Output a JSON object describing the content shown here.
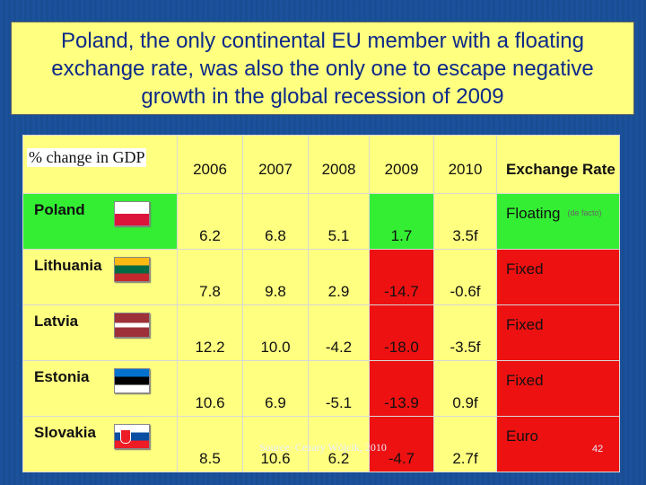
{
  "title": "Poland, the only continental EU member with a floating exchange rate, was also the only one to escape negative growth in the global recession of 2009",
  "table": {
    "caption": "% change in GDP",
    "years": [
      "2006",
      "2007",
      "2008",
      "2009",
      "2010"
    ],
    "exchange_header": "Exchange Rate",
    "rows": [
      {
        "country": "Poland",
        "flag": "poland-flag-icon",
        "values": [
          "6.2",
          "6.8",
          "5.1",
          "1.7",
          "3.5f"
        ],
        "exchange": "Floating",
        "note": "(de facto)"
      },
      {
        "country": "Lithuania",
        "flag": "lithuania-flag-icon",
        "values": [
          "7.8",
          "9.8",
          "2.9",
          "-14.7",
          "-0.6f"
        ],
        "exchange": "Fixed"
      },
      {
        "country": "Latvia",
        "flag": "latvia-flag-icon",
        "values": [
          "12.2",
          "10.0",
          "-4.2",
          "-18.0",
          "-3.5f"
        ],
        "exchange": "Fixed"
      },
      {
        "country": "Estonia",
        "flag": "estonia-flag-icon",
        "values": [
          "10.6",
          "6.9",
          "-5.1",
          "-13.9",
          "0.9f"
        ],
        "exchange": "Fixed"
      },
      {
        "country": "Slovakia",
        "flag": "slovakia-flag-icon",
        "values": [
          "8.5",
          "10.6",
          "6.2",
          "-4.7",
          "2.7f"
        ],
        "exchange": "Euro"
      }
    ]
  },
  "source": "Source: Cezary Wójcik, 2010",
  "page_number": "42",
  "colors": {
    "growth_positive": "#33ee33",
    "growth_negative": "#ee1111",
    "title_bg": "#ffff80",
    "slide_bg": "#1a4f97"
  }
}
